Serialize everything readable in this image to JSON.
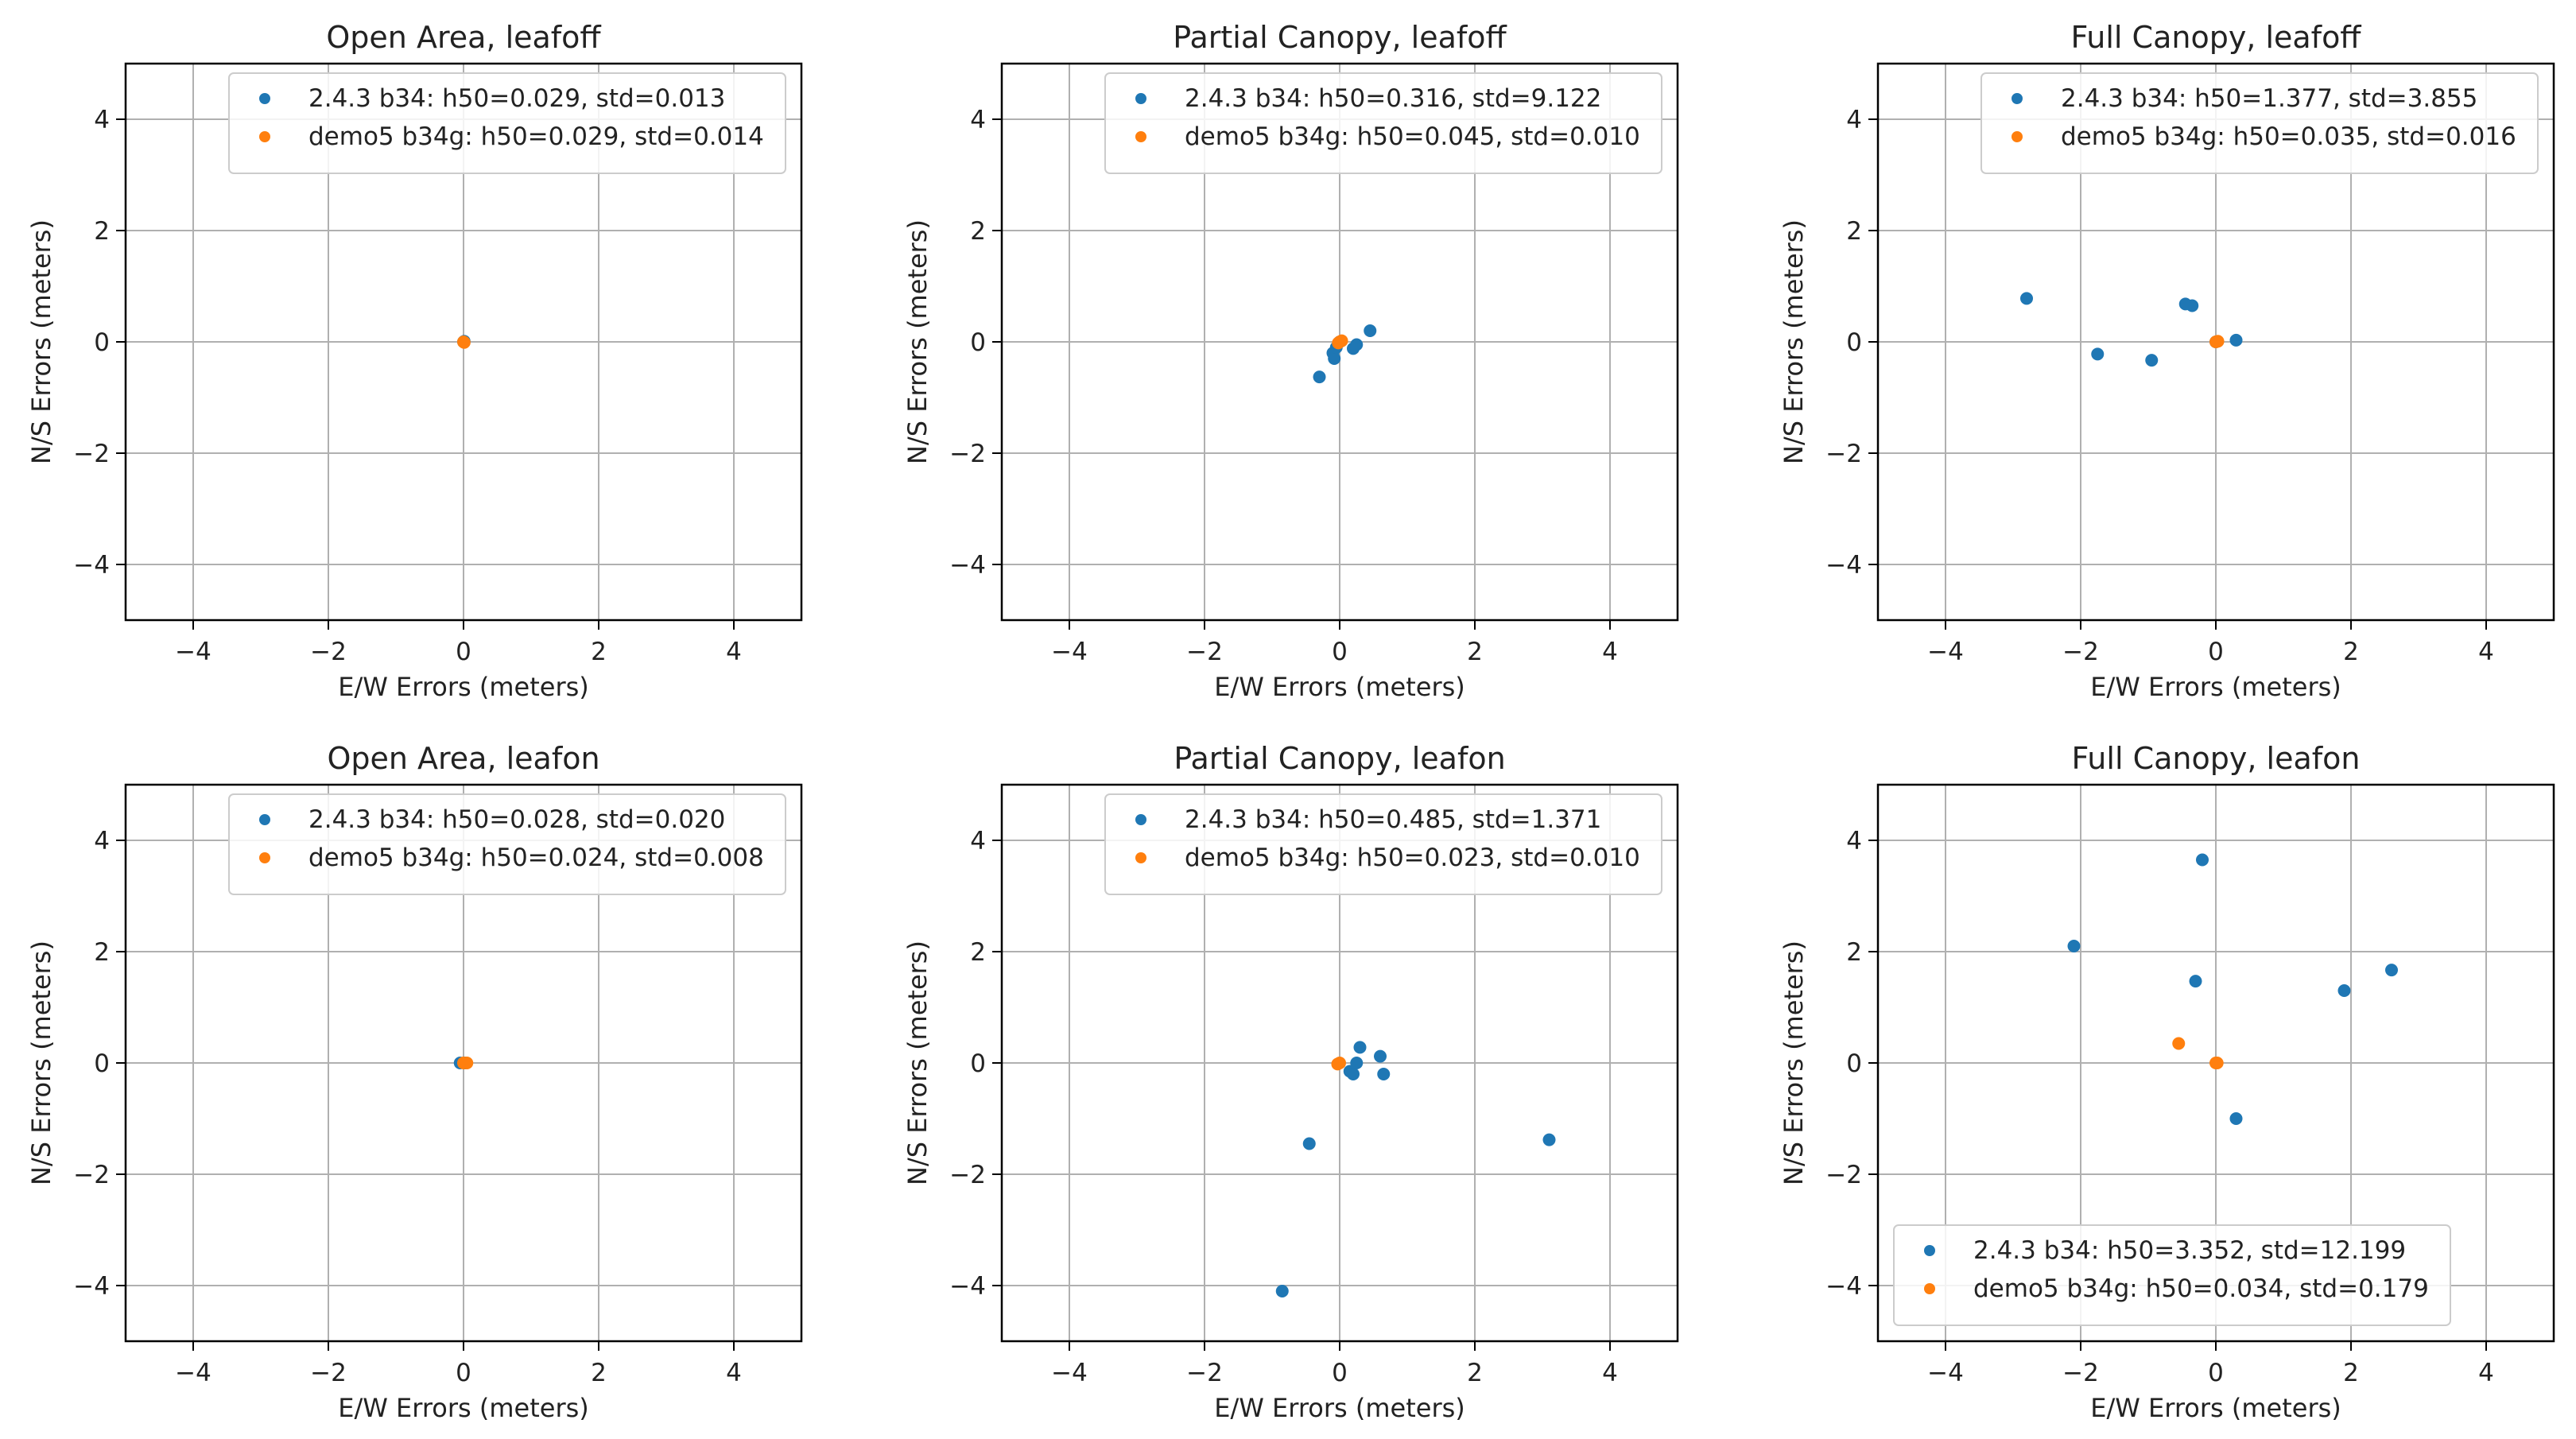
{
  "figure": {
    "colors": {
      "series1": "#1f77b4",
      "series2": "#ff7f0e",
      "grid": "#b0b0b0",
      "axis": "#000000"
    }
  },
  "chart_data": [
    {
      "type": "scatter",
      "title": "Open Area, leafoff",
      "xlabel": "E/W Errors (meters)",
      "ylabel": "N/S Errors (meters)",
      "xlim": [
        -5,
        5
      ],
      "ylim": [
        -5,
        5
      ],
      "xticks": [
        -4,
        -2,
        0,
        2,
        4
      ],
      "yticks": [
        -4,
        -2,
        0,
        2,
        4
      ],
      "grid": true,
      "legend_loc": "upper-right",
      "series": [
        {
          "name": "2.4.3 b34: h50=0.029, std=0.013",
          "x": [
            0.0,
            0.01
          ],
          "y": [
            0.0,
            0.01
          ]
        },
        {
          "name": "demo5 b34g: h50=0.029, std=0.014",
          "x": [
            0.0,
            0.01
          ],
          "y": [
            0.0,
            -0.01
          ]
        }
      ]
    },
    {
      "type": "scatter",
      "title": "Partial Canopy, leafoff",
      "xlabel": "E/W Errors (meters)",
      "ylabel": "N/S Errors (meters)",
      "xlim": [
        -5,
        5
      ],
      "ylim": [
        -5,
        5
      ],
      "xticks": [
        -4,
        -2,
        0,
        2,
        4
      ],
      "yticks": [
        -4,
        -2,
        0,
        2,
        4
      ],
      "grid": true,
      "legend_loc": "upper-right",
      "series": [
        {
          "name": "2.4.3 b34: h50=0.316, std=9.122",
          "x": [
            -0.3,
            -0.1,
            -0.08,
            0.2,
            0.25,
            0.45,
            0.0,
            -0.05
          ],
          "y": [
            -0.63,
            -0.2,
            -0.3,
            -0.12,
            -0.05,
            0.2,
            0.0,
            -0.1
          ]
        },
        {
          "name": "demo5 b34g: h50=0.045, std=0.010",
          "x": [
            0.0,
            0.03,
            -0.02
          ],
          "y": [
            0.0,
            0.02,
            -0.02
          ]
        }
      ]
    },
    {
      "type": "scatter",
      "title": "Full Canopy, leafoff",
      "xlabel": "E/W Errors (meters)",
      "ylabel": "N/S Errors (meters)",
      "xlim": [
        -5,
        5
      ],
      "ylim": [
        -5,
        5
      ],
      "xticks": [
        -4,
        -2,
        0,
        2,
        4
      ],
      "yticks": [
        -4,
        -2,
        0,
        2,
        4
      ],
      "grid": true,
      "legend_loc": "upper-right",
      "series": [
        {
          "name": "2.4.3 b34: h50=1.377, std=3.855",
          "x": [
            -2.8,
            -1.75,
            -0.95,
            -0.45,
            -0.35,
            0.3,
            0.0
          ],
          "y": [
            0.78,
            -0.22,
            -0.33,
            0.68,
            0.65,
            0.03,
            0.0
          ]
        },
        {
          "name": "demo5 b34g: h50=0.035, std=0.016",
          "x": [
            0.0,
            0.03
          ],
          "y": [
            0.0,
            0.01
          ]
        }
      ]
    },
    {
      "type": "scatter",
      "title": "Open Area, leafon",
      "xlabel": "E/W Errors (meters)",
      "ylabel": "N/S Errors (meters)",
      "xlim": [
        -5,
        5
      ],
      "ylim": [
        -5,
        5
      ],
      "xticks": [
        -4,
        -2,
        0,
        2,
        4
      ],
      "yticks": [
        -4,
        -2,
        0,
        2,
        4
      ],
      "grid": true,
      "legend_loc": "upper-right",
      "series": [
        {
          "name": "2.4.3 b34: h50=0.028, std=0.020",
          "x": [
            -0.05,
            0.02
          ],
          "y": [
            0.0,
            0.0
          ]
        },
        {
          "name": "demo5 b34g: h50=0.024, std=0.008",
          "x": [
            0.0,
            0.05
          ],
          "y": [
            0.0,
            0.0
          ]
        }
      ]
    },
    {
      "type": "scatter",
      "title": "Partial Canopy, leafon",
      "xlabel": "E/W Errors (meters)",
      "ylabel": "N/S Errors (meters)",
      "xlim": [
        -5,
        5
      ],
      "ylim": [
        -5,
        5
      ],
      "xticks": [
        -4,
        -2,
        0,
        2,
        4
      ],
      "yticks": [
        -4,
        -2,
        0,
        2,
        4
      ],
      "grid": true,
      "legend_loc": "upper-right",
      "series": [
        {
          "name": "2.4.3 b34: h50=0.485, std=1.371",
          "x": [
            -0.85,
            -0.45,
            0.15,
            0.2,
            0.25,
            0.3,
            0.6,
            0.65,
            3.1
          ],
          "y": [
            -4.1,
            -1.45,
            -0.15,
            -0.2,
            0.0,
            0.28,
            0.12,
            -0.2,
            -1.38
          ]
        },
        {
          "name": "demo5 b34g: h50=0.023, std=0.010",
          "x": [
            0.0,
            -0.03
          ],
          "y": [
            0.0,
            -0.02
          ]
        }
      ]
    },
    {
      "type": "scatter",
      "title": "Full Canopy, leafon",
      "xlabel": "E/W Errors (meters)",
      "ylabel": "N/S Errors (meters)",
      "xlim": [
        -5,
        5
      ],
      "ylim": [
        -5,
        5
      ],
      "xticks": [
        -4,
        -2,
        0,
        2,
        4
      ],
      "yticks": [
        -4,
        -2,
        0,
        2,
        4
      ],
      "grid": true,
      "legend_loc": "lower-left",
      "series": [
        {
          "name": "2.4.3 b34: h50=3.352, std=12.199",
          "x": [
            -2.1,
            -0.2,
            -0.3,
            0.3,
            1.9,
            2.6
          ],
          "y": [
            2.1,
            3.65,
            1.47,
            -1.0,
            1.3,
            1.67
          ]
        },
        {
          "name": "demo5 b34g: h50=0.034, std=0.179",
          "x": [
            -0.55,
            0.0,
            0.02
          ],
          "y": [
            0.35,
            0.0,
            0.0
          ]
        }
      ]
    }
  ]
}
